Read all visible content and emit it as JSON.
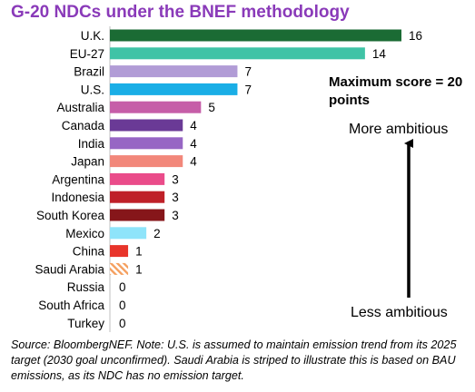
{
  "chart_data": {
    "type": "bar",
    "orientation": "horizontal",
    "title": "G-20 NDCs under the BNEF methodology",
    "categories": [
      "U.K.",
      "EU-27",
      "Brazil",
      "U.S.",
      "Australia",
      "Canada",
      "India",
      "Japan",
      "Argentina",
      "Indonesia",
      "South Korea",
      "Mexico",
      "China",
      "Saudi Arabia",
      "Russia",
      "South Africa",
      "Turkey"
    ],
    "values": [
      16,
      14,
      7,
      7,
      5,
      4,
      4,
      4,
      3,
      3,
      3,
      2,
      1,
      1,
      0,
      0,
      0
    ],
    "colors": [
      "#1b6b34",
      "#3fc3a6",
      "#b19cd6",
      "#1aaee6",
      "#c65ea8",
      "#6a3a96",
      "#9766c4",
      "#f2877a",
      "#ea4c8a",
      "#bf2028",
      "#86161a",
      "#8ee4fa",
      "#e8342a",
      "#f5a05f",
      "#ffffff",
      "#ffffff",
      "#ffffff"
    ],
    "striped_category": "Saudi Arabia",
    "xlim": [
      0,
      20
    ],
    "xlabel": "",
    "ylabel": ""
  },
  "annotations": {
    "max_score": "Maximum score = 20 points",
    "more_ambitious": "More ambitious",
    "less_ambitious": "Less ambitious"
  },
  "footnote": "Source: BloombergNEF. Note: U.S. is assumed to maintain emission trend from its 2025 target (2030 goal unconfirmed). Saudi Arabia is striped to illustrate this is based on BAU emissions, as its NDC has no emission target."
}
